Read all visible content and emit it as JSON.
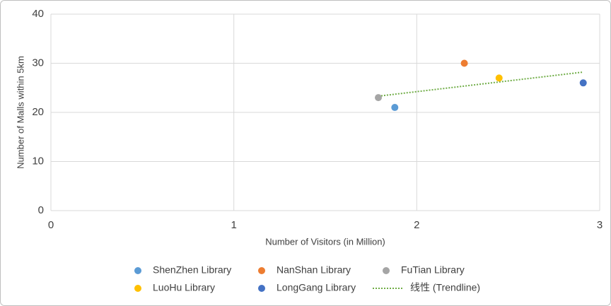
{
  "chart_data": {
    "type": "scatter",
    "xlabel": "Number of Visitors (in Million)",
    "ylabel": "Number of Malls within 5km",
    "xlim": [
      0,
      3
    ],
    "xticks": [
      0,
      1,
      2,
      3
    ],
    "ylim": [
      0,
      40
    ],
    "yticks": [
      0,
      10,
      20,
      30,
      40
    ],
    "grid": true,
    "series": [
      {
        "name": "ShenZhen Library",
        "color": "#5b9bd5",
        "x": [
          1.88
        ],
        "values": [
          21
        ]
      },
      {
        "name": "NanShan Library",
        "color": "#ed7d31",
        "x": [
          2.26
        ],
        "values": [
          30
        ]
      },
      {
        "name": "FuTian Library",
        "color": "#a5a5a5",
        "x": [
          1.79
        ],
        "values": [
          23
        ]
      },
      {
        "name": "LuoHu Library",
        "color": "#ffc000",
        "x": [
          2.45
        ],
        "values": [
          27
        ]
      },
      {
        "name": "LongGang Library",
        "color": "#4472c4",
        "x": [
          2.91
        ],
        "values": [
          26
        ]
      }
    ],
    "trendline": {
      "name": "线性 (Trendline)",
      "color": "#70ad47",
      "x": [
        1.79,
        2.91
      ],
      "values": [
        23.3,
        28.2
      ]
    }
  }
}
